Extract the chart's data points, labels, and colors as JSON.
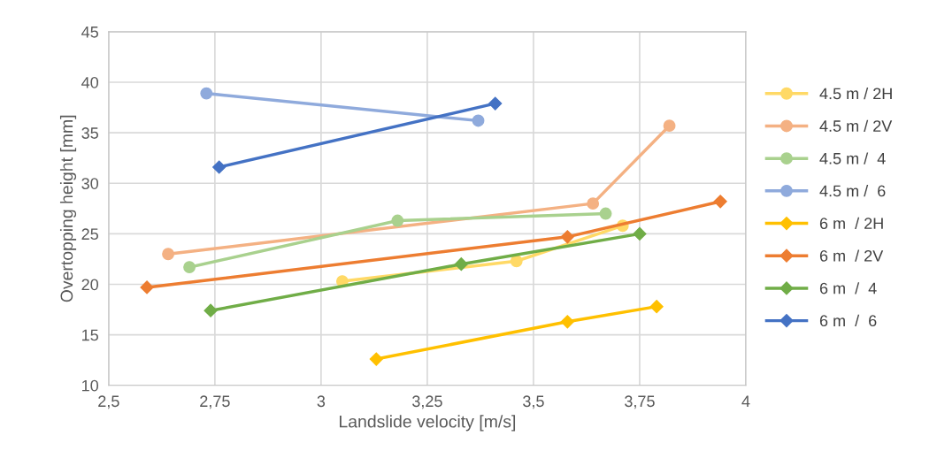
{
  "chart_data": {
    "type": "line",
    "xlabel": "Landslide velocity [m/s]",
    "ylabel": "Overtopping height [mm]",
    "xlim": [
      2.5,
      4
    ],
    "xticks": [
      {
        "value": 2.5,
        "label": "2,5"
      },
      {
        "value": 2.75,
        "label": "2,75"
      },
      3,
      {
        "value": 3.25,
        "label": "3,25"
      },
      {
        "value": 3.5,
        "label": "3,5"
      },
      {
        "value": 3.75,
        "label": "3,75"
      },
      4
    ],
    "ylim": [
      10,
      45
    ],
    "yticks": [
      10,
      15,
      20,
      25,
      30,
      35,
      40,
      45
    ],
    "grid": true,
    "legend": "right",
    "series": [
      {
        "name": "4.5 m / 2H",
        "color": "#ffd966",
        "marker": "circle",
        "x": [
          3.05,
          3.46,
          3.71
        ],
        "values": [
          20.3,
          22.3,
          25.8
        ]
      },
      {
        "name": "4.5 m / 2V",
        "color": "#f4b183",
        "marker": "circle",
        "x": [
          2.64,
          3.64,
          3.82
        ],
        "values": [
          23.0,
          28.0,
          35.7
        ]
      },
      {
        "name": "4.5 m /  4",
        "color": "#a9d18e",
        "marker": "circle",
        "x": [
          2.69,
          3.18,
          3.67
        ],
        "values": [
          21.7,
          26.3,
          27.0
        ]
      },
      {
        "name": "4.5 m /  6",
        "color": "#8faadc",
        "marker": "circle",
        "x": [
          2.73,
          3.37
        ],
        "values": [
          38.9,
          36.2
        ]
      },
      {
        "name": "6 m  / 2H",
        "color": "#ffc000",
        "marker": "diamond",
        "x": [
          3.13,
          3.58,
          3.79
        ],
        "values": [
          12.6,
          16.3,
          17.8
        ]
      },
      {
        "name": "6 m  / 2V",
        "color": "#ed7d31",
        "marker": "diamond",
        "x": [
          2.59,
          3.58,
          3.94
        ],
        "values": [
          19.7,
          24.7,
          28.2
        ]
      },
      {
        "name": "6 m  /  4",
        "color": "#70ad47",
        "marker": "diamond",
        "x": [
          2.74,
          3.33,
          3.75
        ],
        "values": [
          17.4,
          22.0,
          25.0
        ]
      },
      {
        "name": "6 m  /  6",
        "color": "#4472c4",
        "marker": "diamond",
        "x": [
          2.76,
          3.41
        ],
        "values": [
          31.6,
          37.9
        ]
      }
    ]
  }
}
